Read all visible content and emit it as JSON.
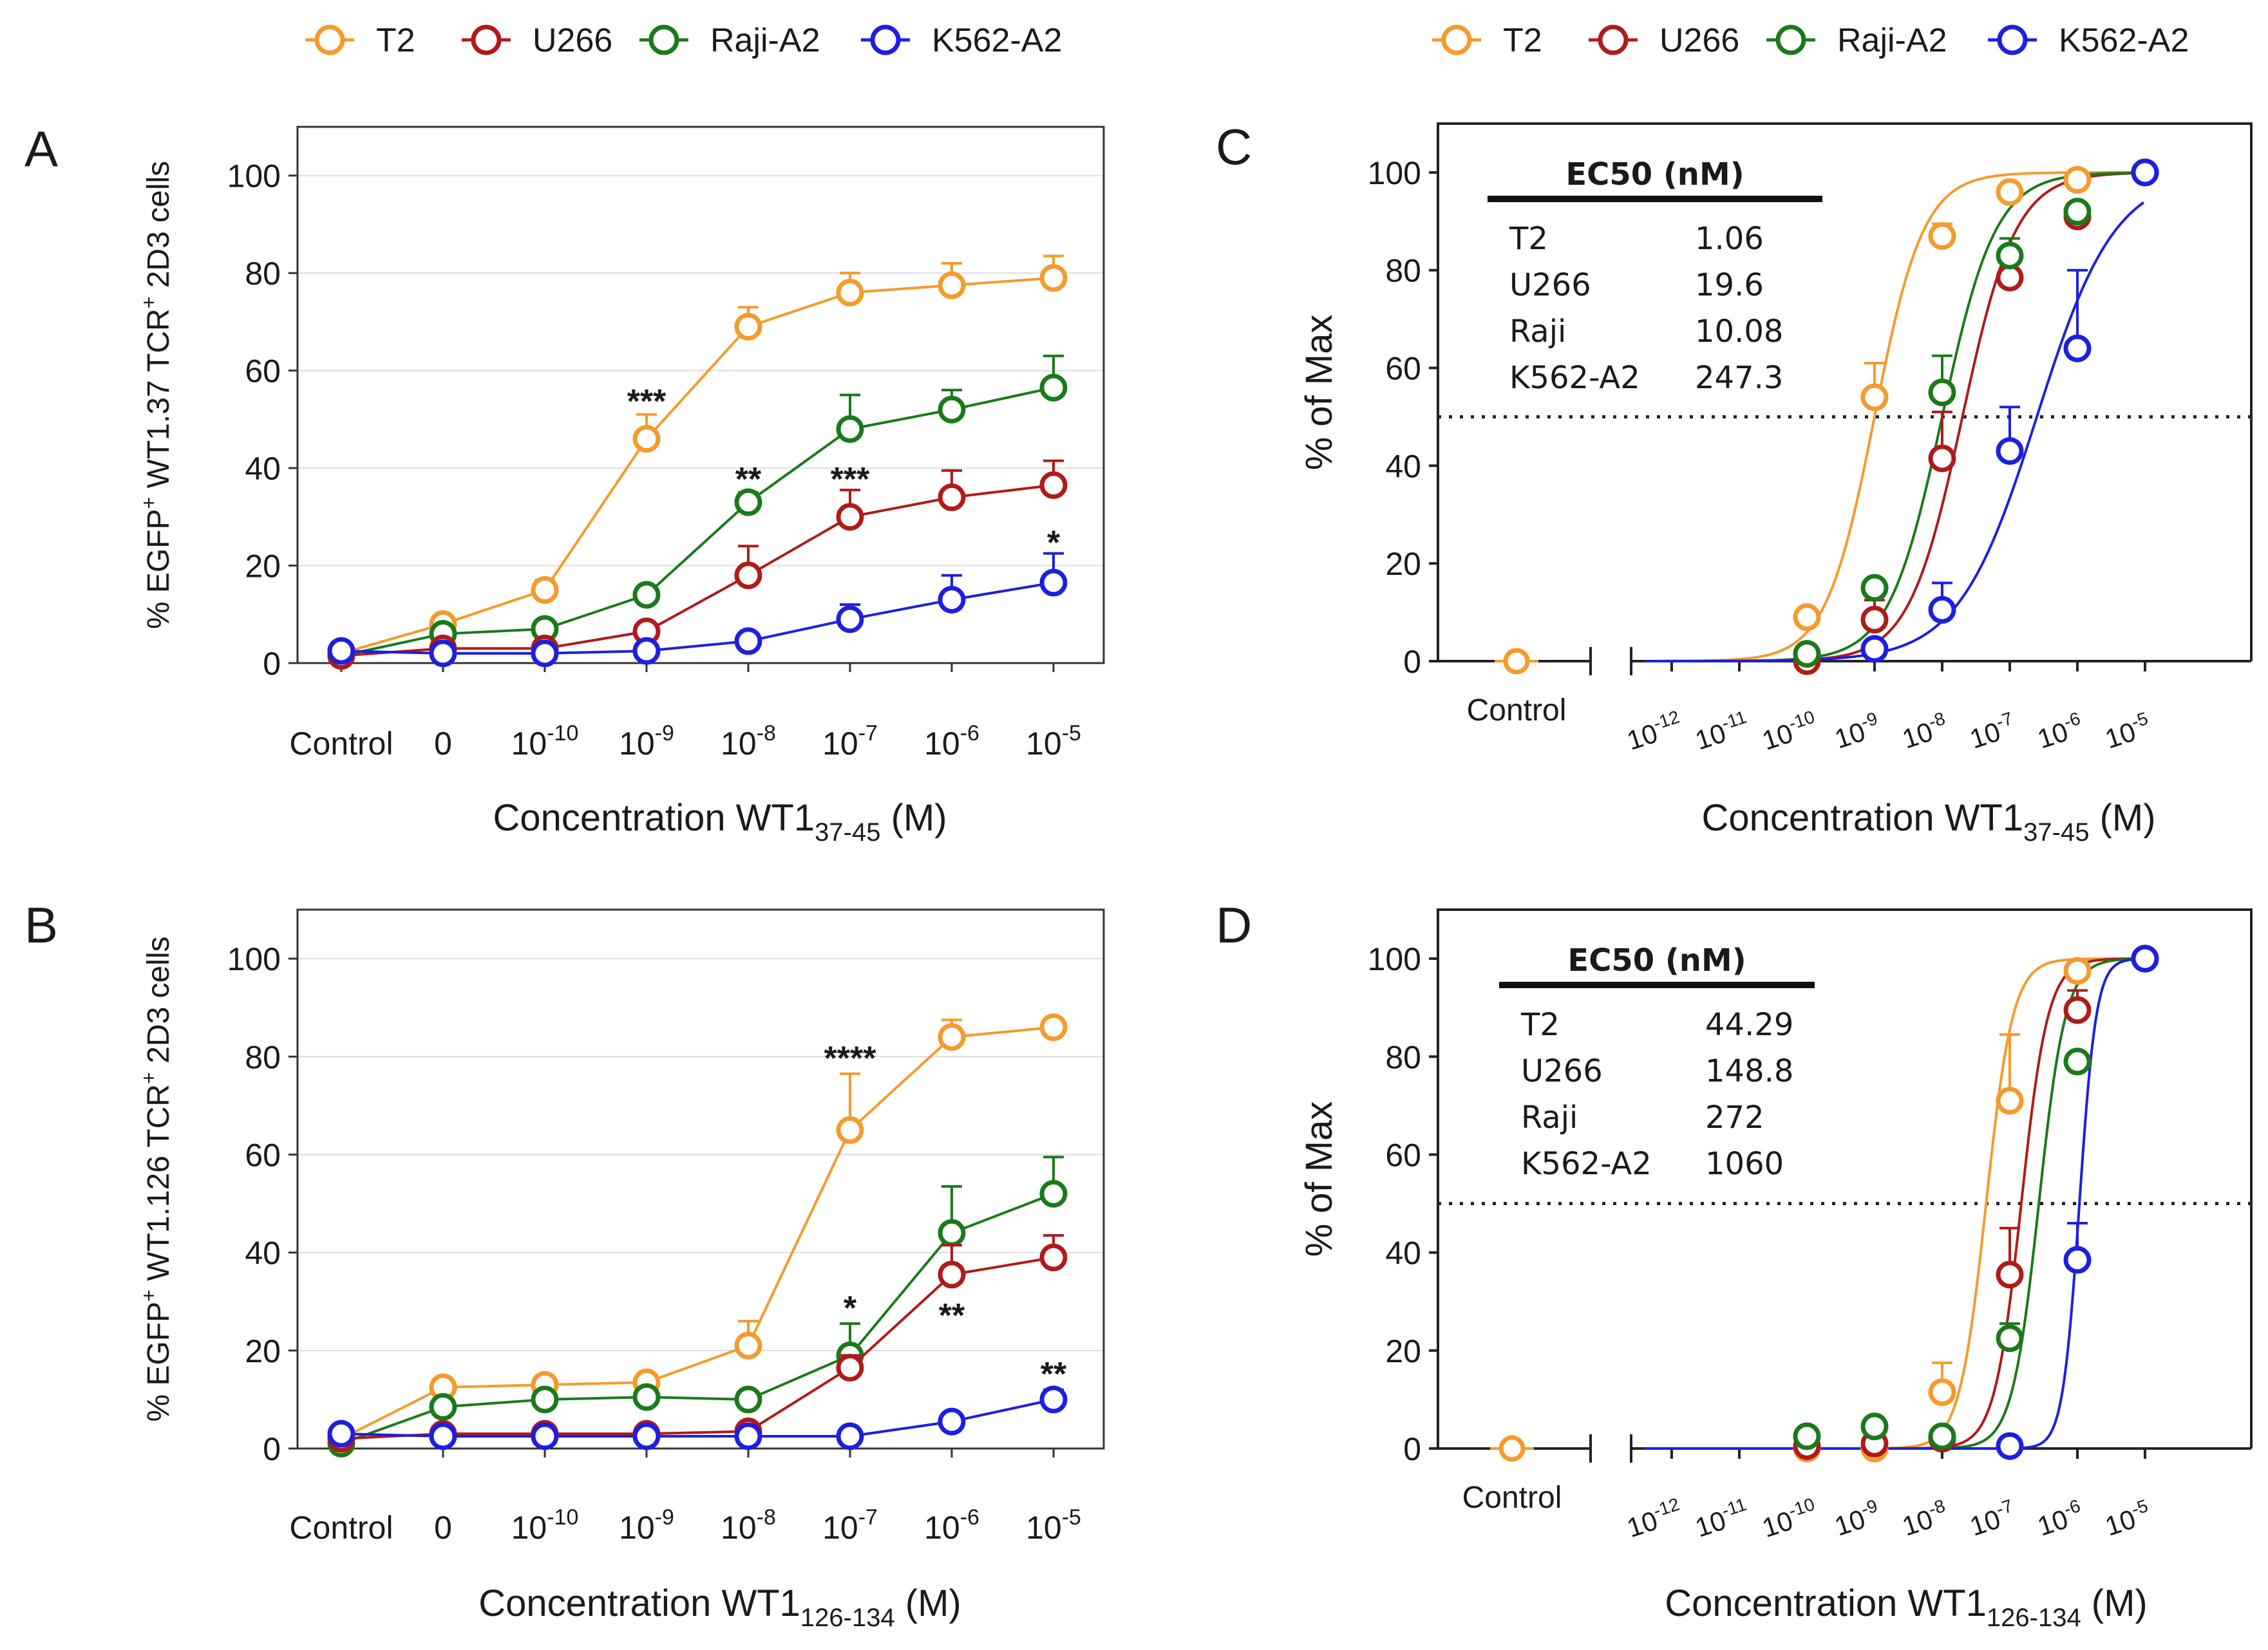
{
  "legend_left": {
    "entries": [
      {
        "label": "T2",
        "color": "#f59a2c"
      },
      {
        "label": "U266",
        "color": "#b01a1a"
      },
      {
        "label": "Raji-A2",
        "color": "#1a7a1a"
      },
      {
        "label": "K562-A2",
        "color": "#1e1ee0"
      }
    ]
  },
  "legend_right": {
    "entries": [
      {
        "label": "T2",
        "color": "#f59a2c"
      },
      {
        "label": "U266",
        "color": "#b01a1a"
      },
      {
        "label": "Raji-A2",
        "color": "#1a7a1a"
      },
      {
        "label": "K562-A2",
        "color": "#1e1ee0"
      }
    ]
  },
  "panels": {
    "A": {
      "letter": "A"
    },
    "B": {
      "letter": "B"
    },
    "C": {
      "letter": "C"
    },
    "D": {
      "letter": "D"
    }
  },
  "chart_data": [
    {
      "id": "A",
      "type": "line",
      "panel_label": "A",
      "ylabel": {
        "pre": "% EGFP",
        "sup1": "+",
        "mid": " WT1.37 TCR",
        "sup2": "+",
        "post": " 2D3 cells"
      },
      "xlabel": {
        "base": "Concentration WT1",
        "sub": "37-45",
        "unit": " (M)"
      },
      "ylim": [
        0,
        110
      ],
      "yticks": [
        0,
        20,
        40,
        60,
        80,
        100
      ],
      "xticks": [
        {
          "base": "Control",
          "exp": ""
        },
        {
          "base": "0",
          "exp": ""
        },
        {
          "base": "10",
          "exp": "-10"
        },
        {
          "base": "10",
          "exp": "-9"
        },
        {
          "base": "10",
          "exp": "-8"
        },
        {
          "base": "10",
          "exp": "-7"
        },
        {
          "base": "10",
          "exp": "-6"
        },
        {
          "base": "10",
          "exp": "-5"
        }
      ],
      "series": [
        {
          "name": "T2",
          "color": "#f59a2c",
          "values": [
            2,
            8,
            15,
            46,
            69,
            76,
            77.5,
            79
          ],
          "err": [
            1,
            1.5,
            2,
            5,
            4,
            4,
            4.5,
            4.5
          ]
        },
        {
          "name": "Raji-A2",
          "color": "#1a7a1a",
          "values": [
            1.5,
            6,
            7,
            14,
            33,
            48,
            52,
            56.5
          ],
          "err": [
            0.5,
            1,
            1,
            1.5,
            2,
            7,
            4,
            6.5
          ]
        },
        {
          "name": "U266",
          "color": "#b01a1a",
          "values": [
            1.5,
            3,
            3,
            6.5,
            18,
            30,
            34,
            36.5
          ],
          "err": [
            0.5,
            0.5,
            0.5,
            1,
            6,
            5.5,
            5.5,
            5
          ]
        },
        {
          "name": "K562-A2",
          "color": "#1e1ee0",
          "values": [
            2.5,
            2,
            2,
            2.5,
            4.5,
            9,
            13,
            16.5
          ],
          "err": [
            0.5,
            0.5,
            0.5,
            0.5,
            1,
            3,
            5,
            6
          ]
        }
      ],
      "annotations": [
        {
          "text": "***",
          "xi": 3,
          "y": 54
        },
        {
          "text": "**",
          "xi": 4,
          "y": 38
        },
        {
          "text": "***",
          "xi": 5,
          "y": 38
        },
        {
          "text": "*",
          "xi": 7,
          "y": 25
        }
      ]
    },
    {
      "id": "B",
      "type": "line",
      "panel_label": "B",
      "ylabel": {
        "pre": "% EGFP",
        "sup1": "+",
        "mid": " WT1.126 TCR",
        "sup2": "+",
        "post": " 2D3 cells"
      },
      "xlabel": {
        "base": "Concentration WT1",
        "sub": "126-134",
        "unit": " (M)"
      },
      "ylim": [
        0,
        110
      ],
      "yticks": [
        0,
        20,
        40,
        60,
        80,
        100
      ],
      "xticks": [
        {
          "base": "Control",
          "exp": ""
        },
        {
          "base": "0",
          "exp": ""
        },
        {
          "base": "10",
          "exp": "-10"
        },
        {
          "base": "10",
          "exp": "-9"
        },
        {
          "base": "10",
          "exp": "-8"
        },
        {
          "base": "10",
          "exp": "-7"
        },
        {
          "base": "10",
          "exp": "-6"
        },
        {
          "base": "10",
          "exp": "-5"
        }
      ],
      "series": [
        {
          "name": "T2",
          "color": "#f59a2c",
          "values": [
            2,
            12.5,
            13,
            13.5,
            21,
            65,
            84,
            86
          ],
          "err": [
            0.5,
            1,
            1,
            1.5,
            5,
            11.5,
            3.5,
            1.5
          ]
        },
        {
          "name": "Raji-A2",
          "color": "#1a7a1a",
          "values": [
            1,
            8.5,
            10,
            10.5,
            10,
            19,
            44,
            52
          ],
          "err": [
            0.5,
            1,
            1,
            1,
            1,
            6.5,
            9.5,
            7.5
          ]
        },
        {
          "name": "U266",
          "color": "#b01a1a",
          "values": [
            2,
            3,
            3,
            3,
            3.5,
            16.5,
            35.5,
            39
          ],
          "err": [
            0.5,
            0.5,
            0.5,
            0.5,
            0.5,
            2.5,
            6,
            4.5
          ]
        },
        {
          "name": "K562-A2",
          "color": "#1e1ee0",
          "values": [
            3,
            2.5,
            2.5,
            2.5,
            2.5,
            2.5,
            5.5,
            10
          ],
          "err": [
            0.5,
            0.5,
            0.5,
            0.5,
            0.5,
            0.5,
            1,
            2
          ]
        }
      ],
      "annotations": [
        {
          "text": "****",
          "xi": 5,
          "y": 80
        },
        {
          "text": "*",
          "xi": 5,
          "y": 29
        },
        {
          "text": "**",
          "xi": 6,
          "y": 27.5
        },
        {
          "text": "**",
          "xi": 7,
          "y": 15.5
        }
      ]
    },
    {
      "id": "C",
      "type": "scatter",
      "panel_label": "C",
      "ylabel": "% of Max",
      "xlabel": {
        "base": "Concentration WT1",
        "sub": "37-45",
        "unit": " (M)"
      },
      "ylim": [
        0,
        110
      ],
      "yticks": [
        0,
        20,
        40,
        60,
        80,
        100
      ],
      "control_label": "Control",
      "control_value": 0,
      "xticks_exp": [
        -12,
        -11,
        -10,
        -9,
        -8,
        -7,
        -6,
        -5
      ],
      "threshold": 50,
      "ec50_table": {
        "header": "EC50 (nM)",
        "rows": [
          {
            "name": "T2",
            "value": "1.06"
          },
          {
            "name": "U266",
            "value": "19.6"
          },
          {
            "name": "Raji",
            "value": "10.08"
          },
          {
            "name": "K562-A2",
            "value": "247.3"
          }
        ]
      },
      "series": [
        {
          "name": "T2",
          "color": "#f59a2c",
          "x": [
            -10,
            -9,
            -8,
            -7,
            -6,
            -5
          ],
          "y": [
            9,
            54,
            87,
            96,
            98.5,
            100
          ],
          "err": [
            0,
            7,
            2.5,
            0,
            0,
            0
          ],
          "fit": {
            "log_ec50": -9.0,
            "hill": 1.2
          }
        },
        {
          "name": "U266",
          "color": "#b01a1a",
          "x": [
            -10,
            -9,
            -8,
            -7,
            -6,
            -5
          ],
          "y": [
            0,
            8.5,
            41.5,
            78.5,
            91,
            100
          ],
          "err": [
            0,
            4,
            9.5,
            0,
            0,
            0
          ],
          "fit": {
            "log_ec50": -7.7,
            "hill": 1.1
          }
        },
        {
          "name": "Raji-A2",
          "color": "#1a7a1a",
          "x": [
            -10,
            -9,
            -8,
            -7,
            -6,
            -5
          ],
          "y": [
            1.5,
            15,
            55,
            83,
            92,
            100
          ],
          "err": [
            0,
            0,
            7.5,
            3.5,
            1,
            0
          ],
          "fit": {
            "log_ec50": -8.0,
            "hill": 1.1
          }
        },
        {
          "name": "K562-A2",
          "color": "#1e1ee0",
          "x": [
            -9,
            -8,
            -7,
            -6,
            -5
          ],
          "y": [
            2.5,
            10.5,
            43,
            64,
            100
          ],
          "err": [
            0,
            5.5,
            9,
            16,
            0
          ],
          "fit": {
            "log_ec50": -6.6,
            "hill": 0.75
          }
        }
      ]
    },
    {
      "id": "D",
      "type": "scatter",
      "panel_label": "D",
      "ylabel": "% of Max",
      "xlabel": {
        "base": "Concentration WT1",
        "sub": "126-134",
        "unit": " (M)"
      },
      "ylim": [
        0,
        110
      ],
      "yticks": [
        0,
        20,
        40,
        60,
        80,
        100
      ],
      "control_label": "Control",
      "control_value": 0,
      "xticks_exp": [
        -12,
        -11,
        -10,
        -9,
        -8,
        -7,
        -6,
        -5
      ],
      "threshold": 50,
      "ec50_table": {
        "header": "EC50 (nM)",
        "rows": [
          {
            "name": "T2",
            "value": "44.29"
          },
          {
            "name": "U266",
            "value": "148.8"
          },
          {
            "name": "Raji",
            "value": "272"
          },
          {
            "name": "K562-A2",
            "value": "1060"
          }
        ]
      },
      "series": [
        {
          "name": "T2",
          "color": "#f59a2c",
          "x": [
            -10,
            -9,
            -8,
            -7,
            -6,
            -5
          ],
          "y": [
            0,
            0,
            11.5,
            71,
            97.5,
            100
          ],
          "err": [
            0,
            0,
            6,
            13.5,
            0,
            0
          ],
          "fit": {
            "log_ec50": -7.35,
            "hill": 2.2
          }
        },
        {
          "name": "U266",
          "color": "#b01a1a",
          "x": [
            -10,
            -9,
            -8,
            -7,
            -6,
            -5
          ],
          "y": [
            0.5,
            1,
            2,
            35.5,
            89.5,
            100
          ],
          "err": [
            0,
            0,
            0,
            9.5,
            4,
            0
          ],
          "fit": {
            "log_ec50": -6.83,
            "hill": 2.2
          }
        },
        {
          "name": "Raji-A2",
          "color": "#1a7a1a",
          "x": [
            -10,
            -9,
            -8,
            -7,
            -6,
            -5
          ],
          "y": [
            2.5,
            4.5,
            2.5,
            22.5,
            79,
            100
          ],
          "err": [
            0,
            0,
            0,
            3,
            0,
            0
          ],
          "fit": {
            "log_ec50": -6.57,
            "hill": 2.2
          }
        },
        {
          "name": "K562-A2",
          "color": "#1e1ee0",
          "x": [
            -7,
            -6,
            -5
          ],
          "y": [
            0.5,
            38.5,
            100
          ],
          "err": [
            0,
            7.5,
            0
          ],
          "fit": {
            "log_ec50": -5.97,
            "hill": 3.5
          }
        }
      ]
    }
  ]
}
